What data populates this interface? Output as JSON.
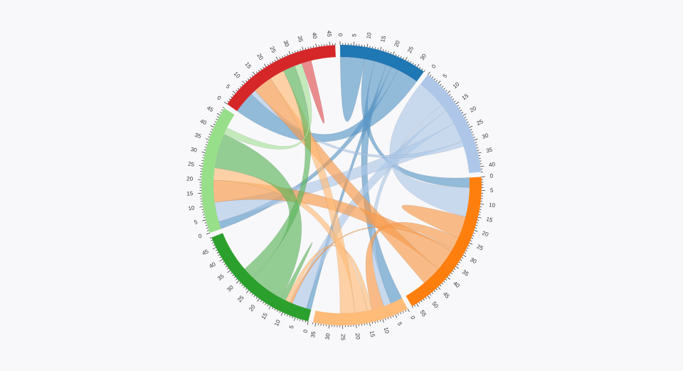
{
  "chart_data": {
    "type": "chord",
    "tick_step": 5,
    "label_step": 5,
    "groups": [
      {
        "id": 0,
        "color": "#1f77b4",
        "ribbon_color": "#5a98c8",
        "total": 33
      },
      {
        "id": 1,
        "color": "#aec7e8",
        "ribbon_color": "#aec7e8",
        "total": 42
      },
      {
        "id": 2,
        "color": "#ff7f0e",
        "ribbon_color": "#f79a4a",
        "total": 57
      },
      {
        "id": 3,
        "color": "#ffbb78",
        "ribbon_color": "#ffbb78",
        "total": 36
      },
      {
        "id": 4,
        "color": "#2ca02c",
        "ribbon_color": "#5cb65c",
        "total": 49
      },
      {
        "id": 5,
        "color": "#98df8a",
        "ribbon_color": "#a7e09a",
        "total": 48
      },
      {
        "id": 6,
        "color": "#d62728",
        "ribbon_color": "#de5255",
        "total": 47
      }
    ],
    "tick_labels": [
      [
        "0",
        "5",
        "10",
        "15",
        "20",
        "25",
        "30"
      ],
      [
        "0",
        "5",
        "10",
        "15",
        "20",
        "25",
        "30",
        "35",
        "40"
      ],
      [
        "0",
        "5",
        "10",
        "15",
        "20",
        "25",
        "30",
        "35",
        "40",
        "45",
        "50",
        "55"
      ],
      [
        "0",
        "5",
        "10",
        "15",
        "20",
        "25",
        "30",
        "35"
      ],
      [
        "0",
        "5",
        "10",
        "15",
        "20",
        "25",
        "30",
        "35",
        "40",
        "45"
      ],
      [
        "0",
        "5",
        "10",
        "15",
        "20",
        "25",
        "30",
        "35",
        "40",
        "45"
      ],
      [
        "0",
        "5",
        "10",
        "15",
        "20",
        "25",
        "30",
        "35",
        "40",
        "45"
      ]
    ],
    "flows": [
      {
        "source": 0,
        "target": 0,
        "value": 10
      },
      {
        "source": 0,
        "target": 2,
        "value": 4
      },
      {
        "source": 0,
        "target": 3,
        "value": 5
      },
      {
        "source": 0,
        "target": 4,
        "value": 2
      },
      {
        "source": 0,
        "target": 5,
        "value": 3
      },
      {
        "source": 0,
        "target": 6,
        "value": 9
      },
      {
        "source": 1,
        "target": 2,
        "value": 12
      },
      {
        "source": 1,
        "target": 3,
        "value": 3
      },
      {
        "source": 1,
        "target": 4,
        "value": 6
      },
      {
        "source": 1,
        "target": 5,
        "value": 8
      },
      {
        "source": 1,
        "target": 6,
        "value": 2
      },
      {
        "source": 2,
        "target": 2,
        "value": 9
      },
      {
        "source": 2,
        "target": 3,
        "value": 5
      },
      {
        "source": 2,
        "target": 4,
        "value": 1
      },
      {
        "source": 2,
        "target": 5,
        "value": 9
      },
      {
        "source": 2,
        "target": 6,
        "value": 8
      },
      {
        "source": 3,
        "target": 4,
        "value": 2
      },
      {
        "source": 3,
        "target": 5,
        "value": 5
      },
      {
        "source": 3,
        "target": 6,
        "value": 6
      },
      {
        "source": 4,
        "target": 4,
        "value": 2
      },
      {
        "source": 4,
        "target": 5,
        "value": 14
      },
      {
        "source": 4,
        "target": 6,
        "value": 5
      },
      {
        "source": 5,
        "target": 6,
        "value": 3
      },
      {
        "source": 6,
        "target": 6,
        "value": 4
      }
    ]
  }
}
